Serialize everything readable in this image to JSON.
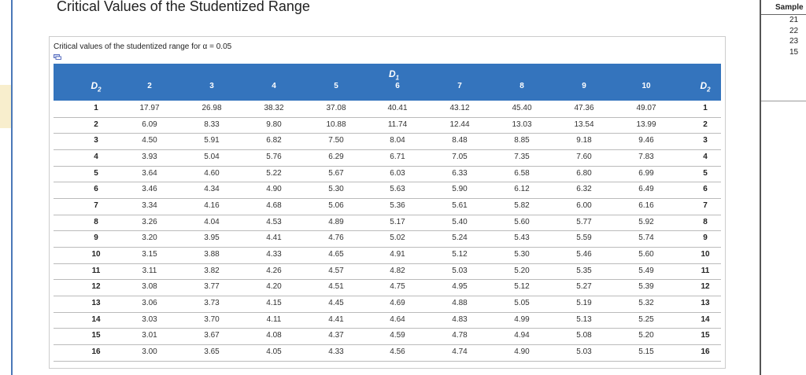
{
  "page_title": "Critical Values of the Studentized Range",
  "table": {
    "caption": "Critical values of the studentized range for α = 0.05",
    "column_group_label": "D1",
    "row_header": "D2",
    "columns": [
      "2",
      "3",
      "4",
      "5",
      "6",
      "7",
      "8",
      "9",
      "10"
    ],
    "rows": [
      {
        "d2": "1",
        "values": [
          "17.97",
          "26.98",
          "38.32",
          "37.08",
          "40.41",
          "43.12",
          "45.40",
          "47.36",
          "49.07"
        ]
      },
      {
        "d2": "2",
        "values": [
          "6.09",
          "8.33",
          "9.80",
          "10.88",
          "11.74",
          "12.44",
          "13.03",
          "13.54",
          "13.99"
        ]
      },
      {
        "d2": "3",
        "values": [
          "4.50",
          "5.91",
          "6.82",
          "7.50",
          "8.04",
          "8.48",
          "8.85",
          "9.18",
          "9.46"
        ]
      },
      {
        "d2": "4",
        "values": [
          "3.93",
          "5.04",
          "5.76",
          "6.29",
          "6.71",
          "7.05",
          "7.35",
          "7.60",
          "7.83"
        ]
      },
      {
        "d2": "5",
        "values": [
          "3.64",
          "4.60",
          "5.22",
          "5.67",
          "6.03",
          "6.33",
          "6.58",
          "6.80",
          "6.99"
        ]
      },
      {
        "d2": "6",
        "values": [
          "3.46",
          "4.34",
          "4.90",
          "5.30",
          "5.63",
          "5.90",
          "6.12",
          "6.32",
          "6.49"
        ]
      },
      {
        "d2": "7",
        "values": [
          "3.34",
          "4.16",
          "4.68",
          "5.06",
          "5.36",
          "5.61",
          "5.82",
          "6.00",
          "6.16"
        ]
      },
      {
        "d2": "8",
        "values": [
          "3.26",
          "4.04",
          "4.53",
          "4.89",
          "5.17",
          "5.40",
          "5.60",
          "5.77",
          "5.92"
        ]
      },
      {
        "d2": "9",
        "values": [
          "3.20",
          "3.95",
          "4.41",
          "4.76",
          "5.02",
          "5.24",
          "5.43",
          "5.59",
          "5.74"
        ]
      },
      {
        "d2": "10",
        "values": [
          "3.15",
          "3.88",
          "4.33",
          "4.65",
          "4.91",
          "5.12",
          "5.30",
          "5.46",
          "5.60"
        ]
      },
      {
        "d2": "11",
        "values": [
          "3.11",
          "3.82",
          "4.26",
          "4.57",
          "4.82",
          "5.03",
          "5.20",
          "5.35",
          "5.49"
        ]
      },
      {
        "d2": "12",
        "values": [
          "3.08",
          "3.77",
          "4.20",
          "4.51",
          "4.75",
          "4.95",
          "5.12",
          "5.27",
          "5.39"
        ]
      },
      {
        "d2": "13",
        "values": [
          "3.06",
          "3.73",
          "4.15",
          "4.45",
          "4.69",
          "4.88",
          "5.05",
          "5.19",
          "5.32"
        ]
      },
      {
        "d2": "14",
        "values": [
          "3.03",
          "3.70",
          "4.11",
          "4.41",
          "4.64",
          "4.83",
          "4.99",
          "5.13",
          "5.25"
        ]
      },
      {
        "d2": "15",
        "values": [
          "3.01",
          "3.67",
          "4.08",
          "4.37",
          "4.59",
          "4.78",
          "4.94",
          "5.08",
          "5.20"
        ]
      },
      {
        "d2": "16",
        "values": [
          "3.00",
          "3.65",
          "4.05",
          "4.33",
          "4.56",
          "4.74",
          "4.90",
          "5.03",
          "5.15"
        ]
      }
    ]
  },
  "sample_panel": {
    "header": "Sample",
    "values": [
      "21",
      "22",
      "23",
      "15"
    ]
  },
  "colors": {
    "header_bg": "#3474bd",
    "left_accent": "#4a78b8"
  }
}
